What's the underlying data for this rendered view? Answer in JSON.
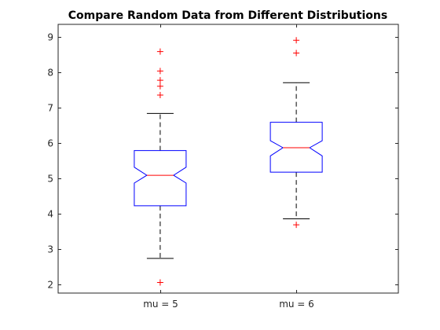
{
  "chart_data": {
    "type": "boxplot",
    "title": "Compare Random Data from Different Distributions",
    "xlabel": "",
    "ylabel": "",
    "ylim": [
      1.75,
      9.35
    ],
    "yticks": [
      2,
      3,
      4,
      5,
      6,
      7,
      8,
      9
    ],
    "grid": false,
    "notched": true,
    "categories": [
      "mu = 5",
      "mu = 6"
    ],
    "boxes": [
      {
        "category": "mu = 5",
        "q1": 4.22,
        "median": 5.08,
        "q3": 5.78,
        "notch_low": 4.86,
        "notch_high": 5.31,
        "whisker_low": 2.73,
        "whisker_high": 6.83,
        "outliers": [
          2.05,
          7.35,
          7.6,
          7.77,
          8.03,
          8.58
        ]
      },
      {
        "category": "mu = 6",
        "q1": 5.17,
        "median": 5.86,
        "q3": 6.58,
        "notch_low": 5.63,
        "notch_high": 6.06,
        "whisker_low": 3.85,
        "whisker_high": 7.7,
        "outliers": [
          3.68,
          8.54,
          8.9
        ]
      }
    ],
    "colors": {
      "box": "#0000ff",
      "median": "#ff0000",
      "whisker": "#000000",
      "outlier": "#ff0000",
      "axis": "#262626"
    }
  }
}
